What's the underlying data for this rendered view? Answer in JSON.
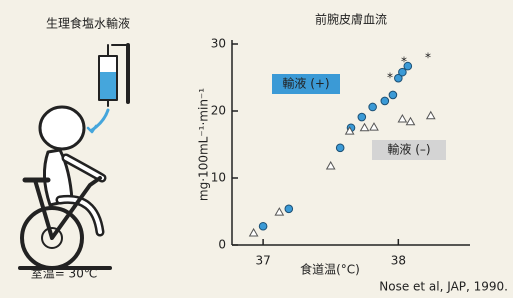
{
  "illustration": {
    "title": "生理食塩水輸液",
    "caption": "室温= 30℃"
  },
  "chart_data": {
    "type": "scatter",
    "title": "前腕皮膚血流",
    "xlabel": "食道温(°C)",
    "ylabel": "mg·100mL⁻¹·min⁻¹",
    "xlim": [
      36.77,
      38.53
    ],
    "ylim": [
      0,
      30
    ],
    "xticks": [
      37,
      38
    ],
    "yticks": [
      0,
      10,
      20,
      30
    ],
    "series": [
      {
        "name": "輸液 (+)",
        "color": "#3b9ad6",
        "x": [
          37.0,
          37.19,
          37.57,
          37.65,
          37.73,
          37.81,
          37.9,
          37.96,
          38.0,
          38.03,
          38.07
        ],
        "values": [
          2.8,
          5.4,
          14.5,
          17.5,
          19.1,
          20.6,
          21.5,
          22.4,
          24.9,
          25.8,
          26.7
        ]
      },
      {
        "name": "輸液 (–)",
        "color": "#d4d4d4",
        "x": [
          36.93,
          37.12,
          37.5,
          37.64,
          37.75,
          37.82,
          38.03,
          38.09,
          38.24
        ],
        "values": [
          1.8,
          4.9,
          11.8,
          17.0,
          17.5,
          17.6,
          18.8,
          18.4,
          19.3
        ]
      }
    ],
    "annotations": [
      "*",
      "*",
      "*"
    ],
    "source": "Nose et al, JAP, 1990."
  }
}
